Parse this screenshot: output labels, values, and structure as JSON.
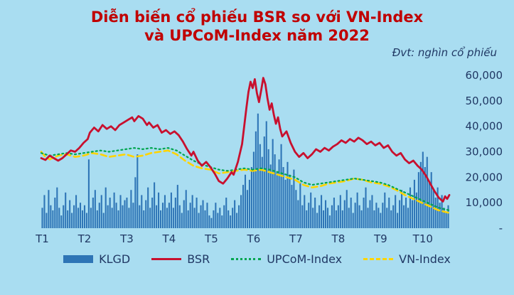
{
  "title": {
    "line1": "Diễn biến cổ phiếu BSR so với VN-Index",
    "line2": "và UPCoM-Index năm 2022"
  },
  "unit_note": "Đvt: nghìn cổ phiếu",
  "colors": {
    "background": "#A9DDF1",
    "title": "#C00000",
    "text": "#203864",
    "bar": "#2E75B6",
    "bsr": "#C8102E",
    "upcom": "#00A550",
    "vnindex": "#FFD400"
  },
  "chart_data": {
    "type": "bar",
    "subtype": "combo-bar-line",
    "title": "Diễn biến cổ phiếu BSR so với VN-Index và UPCoM-Index năm 2022",
    "unit": "nghìn cổ phiếu",
    "grid": false,
    "legend_position": "bottom",
    "x_categories": [
      "T1",
      "T2",
      "T3",
      "T4",
      "T5",
      "T6",
      "T7",
      "T8",
      "T9",
      "T10"
    ],
    "x_span_months": 9.65,
    "bars_per_month": 20,
    "y_axis": {
      "min": 0,
      "max": 60000,
      "side": "right",
      "ticks": [
        {
          "label": "60,000",
          "value": 60000
        },
        {
          "label": "50,000",
          "value": 50000
        },
        {
          "label": "40,000",
          "value": 40000
        },
        {
          "label": "30,000",
          "value": 30000
        },
        {
          "label": "20,000",
          "value": 20000
        },
        {
          "label": "10,000",
          "value": 10000
        },
        {
          "label": "-",
          "value": 0
        }
      ]
    },
    "bars": {
      "name": "KLGD",
      "values": [
        8000,
        13000,
        6000,
        15000,
        9000,
        7000,
        12000,
        16000,
        8000,
        5000,
        9000,
        14000,
        7000,
        11000,
        6000,
        9000,
        13000,
        8000,
        10000,
        7000,
        9000,
        6000,
        27000,
        8000,
        12000,
        15000,
        7000,
        10000,
        13000,
        6000,
        16000,
        9000,
        12000,
        8000,
        14000,
        10000,
        7000,
        13000,
        9000,
        11000,
        12000,
        8000,
        15000,
        10000,
        20000,
        29000,
        9000,
        13000,
        7000,
        11000,
        16000,
        8000,
        12000,
        18000,
        9000,
        14000,
        7000,
        10000,
        13000,
        8000,
        10000,
        14000,
        8000,
        12000,
        17000,
        9000,
        6000,
        11000,
        15000,
        7000,
        10000,
        13000,
        8000,
        12000,
        6000,
        9000,
        11000,
        7000,
        10000,
        5000,
        4000,
        7000,
        10000,
        6000,
        8000,
        5000,
        9000,
        12000,
        7000,
        5000,
        8000,
        11000,
        6000,
        9000,
        13000,
        17000,
        21000,
        15000,
        19000,
        24000,
        30000,
        38000,
        45000,
        33000,
        28000,
        36000,
        42000,
        31000,
        25000,
        35000,
        29000,
        22000,
        27000,
        33000,
        24000,
        19000,
        26000,
        21000,
        17000,
        23000,
        15000,
        11000,
        18000,
        9000,
        13000,
        7000,
        10000,
        14000,
        8000,
        12000,
        6000,
        9000,
        13000,
        7000,
        11000,
        8000,
        5000,
        9000,
        12000,
        7000,
        9000,
        13000,
        7000,
        11000,
        15000,
        8000,
        12000,
        6000,
        10000,
        14000,
        9000,
        7000,
        12000,
        16000,
        8000,
        11000,
        13000,
        7000,
        10000,
        8000,
        6000,
        10000,
        14000,
        8000,
        12000,
        7000,
        9000,
        13000,
        6000,
        11000,
        15000,
        9000,
        12000,
        8000,
        16000,
        11000,
        19000,
        14000,
        22000,
        26000,
        30000,
        24000,
        28000,
        18000,
        22000,
        15000,
        12000,
        16000,
        10000,
        13000,
        8000,
        6000,
        9000
      ]
    },
    "lines": [
      {
        "name": "VN-Index",
        "color_key": "vnindex",
        "width": 2.6,
        "dash": "8 5",
        "points": [
          [
            1.0,
            30000
          ],
          [
            1.1,
            28000
          ],
          [
            1.2,
            27000
          ],
          [
            1.4,
            28500
          ],
          [
            1.6,
            29000
          ],
          [
            1.8,
            28000
          ],
          [
            2.0,
            28500
          ],
          [
            2.2,
            29500
          ],
          [
            2.4,
            29000
          ],
          [
            2.6,
            28000
          ],
          [
            2.8,
            28500
          ],
          [
            3.0,
            29000
          ],
          [
            3.2,
            28000
          ],
          [
            3.4,
            28500
          ],
          [
            3.6,
            29500
          ],
          [
            3.8,
            30000
          ],
          [
            4.0,
            30500
          ],
          [
            4.2,
            29000
          ],
          [
            4.4,
            26500
          ],
          [
            4.6,
            24500
          ],
          [
            4.8,
            23500
          ],
          [
            5.0,
            23000
          ],
          [
            5.2,
            21500
          ],
          [
            5.4,
            22000
          ],
          [
            5.6,
            22500
          ],
          [
            5.8,
            23000
          ],
          [
            6.0,
            22500
          ],
          [
            6.2,
            23000
          ],
          [
            6.4,
            22000
          ],
          [
            6.6,
            21000
          ],
          [
            6.8,
            20000
          ],
          [
            7.0,
            19000
          ],
          [
            7.2,
            17000
          ],
          [
            7.4,
            16000
          ],
          [
            7.6,
            16500
          ],
          [
            7.8,
            17500
          ],
          [
            8.0,
            18000
          ],
          [
            8.2,
            18500
          ],
          [
            8.4,
            19500
          ],
          [
            8.6,
            19000
          ],
          [
            8.8,
            18000
          ],
          [
            9.0,
            17500
          ],
          [
            9.2,
            16500
          ],
          [
            9.4,
            15000
          ],
          [
            9.6,
            13000
          ],
          [
            9.8,
            11500
          ],
          [
            10.0,
            10000
          ],
          [
            10.2,
            8500
          ],
          [
            10.4,
            7000
          ],
          [
            10.65,
            6000
          ]
        ]
      },
      {
        "name": "UPCoM-Index",
        "color_key": "upcom",
        "width": 2.2,
        "dash": "2 4",
        "points": [
          [
            1.0,
            29500
          ],
          [
            1.2,
            28500
          ],
          [
            1.4,
            29000
          ],
          [
            1.6,
            29500
          ],
          [
            1.8,
            29000
          ],
          [
            2.0,
            29500
          ],
          [
            2.2,
            30000
          ],
          [
            2.4,
            30500
          ],
          [
            2.6,
            30000
          ],
          [
            2.8,
            30500
          ],
          [
            3.0,
            31000
          ],
          [
            3.2,
            31500
          ],
          [
            3.4,
            31000
          ],
          [
            3.6,
            31500
          ],
          [
            3.8,
            31000
          ],
          [
            4.0,
            31500
          ],
          [
            4.2,
            30500
          ],
          [
            4.4,
            28500
          ],
          [
            4.6,
            26500
          ],
          [
            4.8,
            25000
          ],
          [
            5.0,
            24000
          ],
          [
            5.2,
            23000
          ],
          [
            5.4,
            22500
          ],
          [
            5.6,
            23000
          ],
          [
            5.8,
            23500
          ],
          [
            6.0,
            23000
          ],
          [
            6.2,
            23500
          ],
          [
            6.4,
            23000
          ],
          [
            6.6,
            22000
          ],
          [
            6.8,
            21000
          ],
          [
            7.0,
            20000
          ],
          [
            7.2,
            18000
          ],
          [
            7.4,
            17000
          ],
          [
            7.6,
            17500
          ],
          [
            7.8,
            18000
          ],
          [
            8.0,
            18500
          ],
          [
            8.2,
            19000
          ],
          [
            8.4,
            19500
          ],
          [
            8.6,
            19000
          ],
          [
            8.8,
            18500
          ],
          [
            9.0,
            18000
          ],
          [
            9.2,
            17000
          ],
          [
            9.4,
            15500
          ],
          [
            9.6,
            14000
          ],
          [
            9.8,
            12500
          ],
          [
            10.0,
            11000
          ],
          [
            10.2,
            9500
          ],
          [
            10.4,
            8000
          ],
          [
            10.65,
            7000
          ]
        ]
      },
      {
        "name": "BSR",
        "color_key": "bsr",
        "width": 2.8,
        "dash": "",
        "points": [
          [
            1.0,
            27500
          ],
          [
            1.1,
            26800
          ],
          [
            1.2,
            28500
          ],
          [
            1.3,
            27500
          ],
          [
            1.4,
            26500
          ],
          [
            1.5,
            27500
          ],
          [
            1.6,
            29000
          ],
          [
            1.7,
            30500
          ],
          [
            1.8,
            30000
          ],
          [
            1.9,
            31500
          ],
          [
            2.0,
            33500
          ],
          [
            2.1,
            35000
          ],
          [
            2.15,
            37500
          ],
          [
            2.25,
            39500
          ],
          [
            2.35,
            38000
          ],
          [
            2.45,
            40500
          ],
          [
            2.55,
            39000
          ],
          [
            2.65,
            40000
          ],
          [
            2.75,
            38500
          ],
          [
            2.85,
            40500
          ],
          [
            2.95,
            41500
          ],
          [
            3.05,
            42500
          ],
          [
            3.15,
            43500
          ],
          [
            3.2,
            42000
          ],
          [
            3.3,
            44000
          ],
          [
            3.4,
            43000
          ],
          [
            3.5,
            40500
          ],
          [
            3.55,
            41500
          ],
          [
            3.65,
            39500
          ],
          [
            3.75,
            40500
          ],
          [
            3.85,
            37500
          ],
          [
            3.95,
            38500
          ],
          [
            4.05,
            37000
          ],
          [
            4.15,
            38000
          ],
          [
            4.25,
            36500
          ],
          [
            4.35,
            34000
          ],
          [
            4.45,
            31000
          ],
          [
            4.55,
            28500
          ],
          [
            4.6,
            30000
          ],
          [
            4.7,
            26500
          ],
          [
            4.8,
            24500
          ],
          [
            4.9,
            26000
          ],
          [
            5.0,
            24000
          ],
          [
            5.1,
            21500
          ],
          [
            5.2,
            18500
          ],
          [
            5.3,
            17500
          ],
          [
            5.4,
            19500
          ],
          [
            5.5,
            22000
          ],
          [
            5.55,
            21000
          ],
          [
            5.65,
            26000
          ],
          [
            5.75,
            33000
          ],
          [
            5.8,
            40000
          ],
          [
            5.85,
            47000
          ],
          [
            5.9,
            53500
          ],
          [
            5.95,
            57500
          ],
          [
            6.0,
            55000
          ],
          [
            6.05,
            58500
          ],
          [
            6.1,
            53000
          ],
          [
            6.15,
            49500
          ],
          [
            6.2,
            54000
          ],
          [
            6.25,
            59000
          ],
          [
            6.3,
            56500
          ],
          [
            6.35,
            51000
          ],
          [
            6.4,
            46500
          ],
          [
            6.45,
            49000
          ],
          [
            6.5,
            44500
          ],
          [
            6.55,
            41000
          ],
          [
            6.6,
            43500
          ],
          [
            6.65,
            39000
          ],
          [
            6.7,
            36000
          ],
          [
            6.8,
            38000
          ],
          [
            6.9,
            33500
          ],
          [
            7.0,
            30000
          ],
          [
            7.1,
            28000
          ],
          [
            7.2,
            29500
          ],
          [
            7.3,
            27500
          ],
          [
            7.4,
            29000
          ],
          [
            7.5,
            31000
          ],
          [
            7.6,
            30000
          ],
          [
            7.7,
            31500
          ],
          [
            7.8,
            30500
          ],
          [
            7.9,
            32000
          ],
          [
            8.0,
            33000
          ],
          [
            8.1,
            34500
          ],
          [
            8.2,
            33500
          ],
          [
            8.3,
            35000
          ],
          [
            8.4,
            34000
          ],
          [
            8.5,
            35500
          ],
          [
            8.6,
            34500
          ],
          [
            8.7,
            33000
          ],
          [
            8.8,
            34000
          ],
          [
            8.9,
            32500
          ],
          [
            9.0,
            33500
          ],
          [
            9.1,
            31500
          ],
          [
            9.2,
            32500
          ],
          [
            9.3,
            30000
          ],
          [
            9.4,
            28500
          ],
          [
            9.5,
            29500
          ],
          [
            9.6,
            27000
          ],
          [
            9.7,
            25500
          ],
          [
            9.8,
            26500
          ],
          [
            9.9,
            24500
          ],
          [
            10.0,
            23000
          ],
          [
            10.1,
            20500
          ],
          [
            10.2,
            17500
          ],
          [
            10.3,
            14500
          ],
          [
            10.4,
            12000
          ],
          [
            10.5,
            10500
          ],
          [
            10.55,
            12500
          ],
          [
            10.6,
            11500
          ],
          [
            10.65,
            13000
          ]
        ]
      }
    ],
    "legend": [
      {
        "label": "KLGD",
        "swatch": "bar",
        "color_key": "bar"
      },
      {
        "label": "BSR",
        "swatch": "line-solid",
        "color_key": "bsr"
      },
      {
        "label": "UPCoM-Index",
        "swatch": "line-dotted",
        "color_key": "upcom"
      },
      {
        "label": "VN-Index",
        "swatch": "line-dashed",
        "color_key": "vnindex"
      }
    ]
  }
}
